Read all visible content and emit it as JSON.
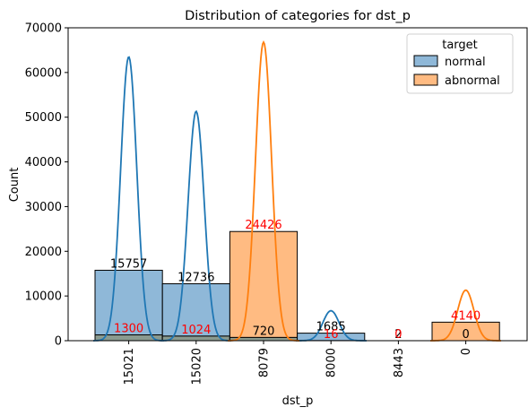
{
  "chart_data": {
    "type": "bar",
    "title": "Distribution of categories for dst_p",
    "xlabel": "dst_p",
    "ylabel": "Count",
    "ylim": [
      0,
      70000
    ],
    "yticks": [
      0,
      10000,
      20000,
      30000,
      40000,
      50000,
      60000,
      70000
    ],
    "categories": [
      "15021",
      "15020",
      "8079",
      "8000",
      "8443",
      "0"
    ],
    "series": [
      {
        "name": "normal",
        "values": [
          15757,
          12736,
          720,
          1685,
          2,
          0
        ],
        "label_color": "#000000",
        "fill": "#8fb8d8",
        "line": "#1f77b4"
      },
      {
        "name": "abnormal",
        "values": [
          1300,
          1024,
          24426,
          16,
          0,
          4140
        ],
        "label_color": "#ff0000",
        "fill": "#ffbb82",
        "line": "#ff7f0e"
      }
    ],
    "grid": false,
    "legend": {
      "title": "target",
      "position": "top-right"
    },
    "kde": {
      "normal_peaks": [
        63500,
        51300,
        0,
        6700,
        0,
        0
      ],
      "abnormal_peaks": [
        0,
        0,
        66800,
        0,
        0,
        11300
      ]
    }
  }
}
